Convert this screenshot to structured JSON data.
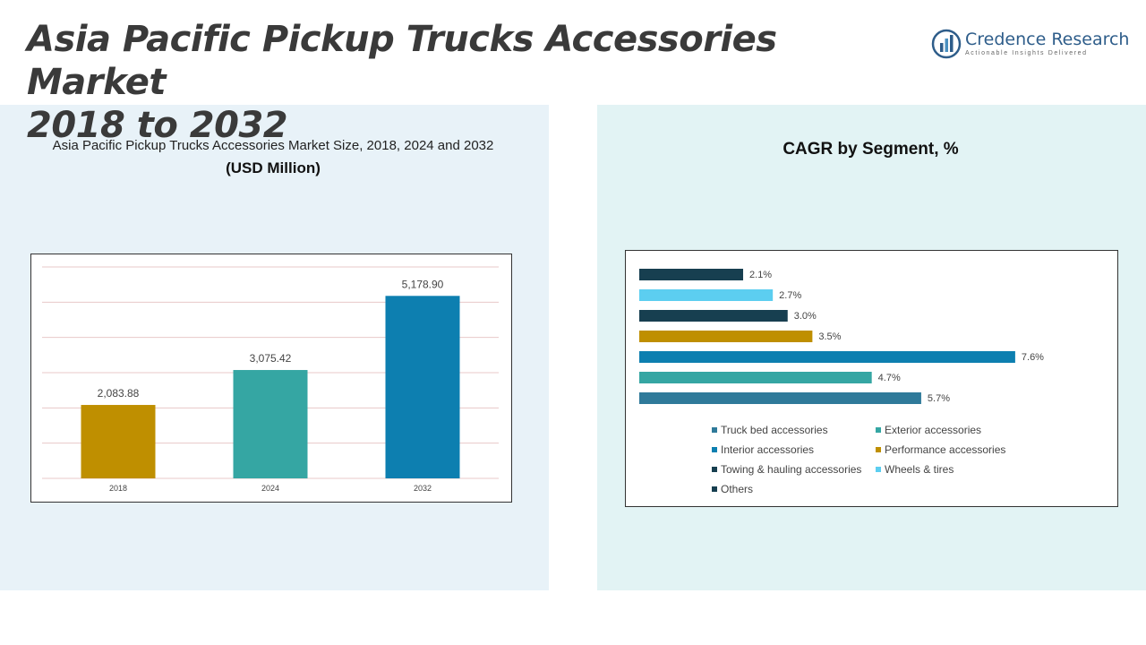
{
  "header": {
    "title_line1": "Asia Pacific Pickup Trucks Accessories Market",
    "title_line2": "2018 to 2032"
  },
  "logo": {
    "name": "Credence Research",
    "tagline": "Actionable Insights Delivered",
    "icon": "bar-chart-circle-icon"
  },
  "left_panel": {
    "title": "Asia Pacific Pickup Trucks Accessories Market Size, 2018, 2024 and 2032",
    "subtitle": "(USD Million)"
  },
  "right_panel": {
    "title": "CAGR by Segment, %"
  },
  "chart_data": [
    {
      "type": "bar",
      "categories": [
        "2018",
        "2024",
        "2032"
      ],
      "values": [
        2083.88,
        3075.42,
        5178.9
      ],
      "value_labels": [
        "2,083.88",
        "3,075.42",
        "5,178.90"
      ],
      "colors": [
        "#bf8f00",
        "#35a6a3",
        "#0d7fb0"
      ],
      "ylim": [
        0,
        6000
      ],
      "grid": true
    },
    {
      "type": "bar",
      "orientation": "horizontal",
      "categories": [
        "Others",
        "Wheels & tires",
        "Towing & hauling accessories",
        "Performance accessories",
        "Interior accessories",
        "Exterior accessories",
        "Truck bed accessories"
      ],
      "values": [
        2.1,
        2.7,
        3.0,
        3.5,
        7.6,
        4.7,
        5.7
      ],
      "value_labels": [
        "2.1%",
        "2.7%",
        "3.0%",
        "3.5%",
        "7.6%",
        "4.7%",
        "5.7%"
      ],
      "colors": [
        "#173f50",
        "#5ccef0",
        "#173f50",
        "#bf8f00",
        "#0d7fb0",
        "#35a6a3",
        "#2f7a9a"
      ],
      "xlim": [
        0,
        8
      ],
      "legend": {
        "placement": "bottom",
        "items": [
          {
            "label": "Truck bed accessories",
            "color": "#2f7a9a"
          },
          {
            "label": "Exterior accessories",
            "color": "#35a6a3"
          },
          {
            "label": "Interior accessories",
            "color": "#0d7fb0"
          },
          {
            "label": "Performance accessories",
            "color": "#bf8f00"
          },
          {
            "label": "Towing & hauling accessories",
            "color": "#173f50"
          },
          {
            "label": "Wheels & tires",
            "color": "#5ccef0"
          },
          {
            "label": "Others",
            "color": "#173f50"
          }
        ]
      }
    }
  ]
}
